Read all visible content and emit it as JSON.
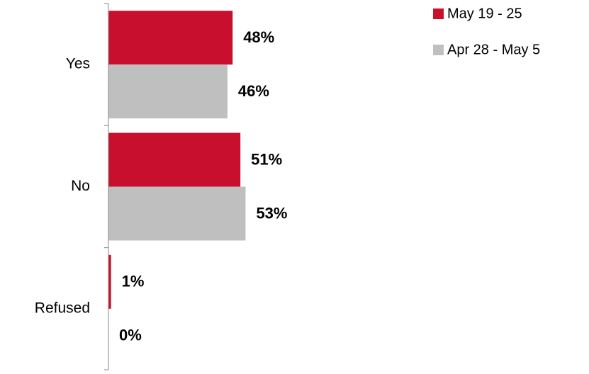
{
  "chart_data": {
    "type": "hbar",
    "categories": [
      "Yes",
      "No",
      "Refused"
    ],
    "series": [
      {
        "name": "May 19 - 25",
        "color": "#c8102e",
        "values": [
          48,
          51,
          1
        ],
        "value_labels": [
          "48%",
          "51%",
          "1%"
        ]
      },
      {
        "name": "Apr 28 - May 5",
        "color": "#bfbfbf",
        "values": [
          46,
          53,
          0
        ],
        "value_labels": [
          "46%",
          "53%",
          "0%"
        ]
      }
    ],
    "xlim": [
      0,
      100
    ]
  }
}
